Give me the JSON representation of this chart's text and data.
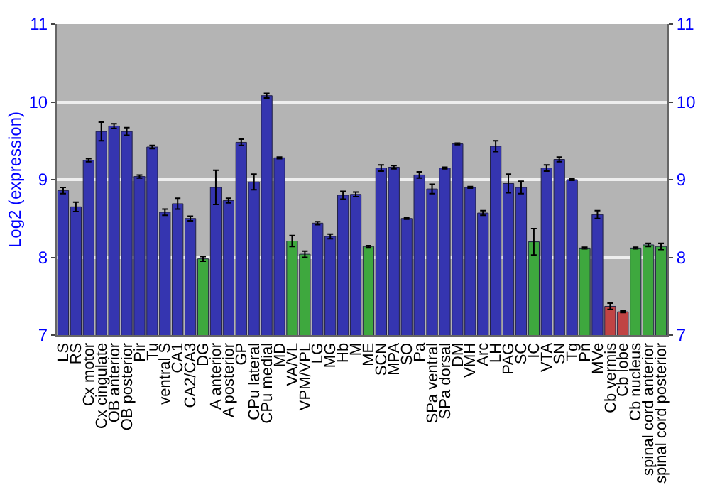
{
  "chart_data": {
    "type": "bar",
    "ylabel": "Log2 (expression)",
    "categories": [
      "LS",
      "RS",
      "Cx motor",
      "Cx cingulate",
      "OB anterior",
      "OB posterior",
      "Pir",
      "Tu",
      "ventral S",
      "CA1",
      "CA2/CA3",
      "DG",
      "A anterior",
      "A posterior",
      "GP",
      "CPu lateral",
      "CPu medial",
      "MD",
      "VA/VL",
      "VPM/VPL",
      "LG",
      "MG",
      "Hb",
      "M",
      "ME",
      "SCN",
      "MPA",
      "SO",
      "Pa",
      "SPa ventral",
      "SPa dorsal",
      "DM",
      "VMH",
      "Arc",
      "LH",
      "PAG",
      "SC",
      "IC",
      "VTA",
      "SN",
      "Tg",
      "Pn",
      "MVe",
      "Cb vermis",
      "Cb lobe",
      "Cb nucleus",
      "spinal cord anterior",
      "spinal cord posterior"
    ],
    "values": [
      8.86,
      8.65,
      9.25,
      9.62,
      9.69,
      9.62,
      9.04,
      9.42,
      8.58,
      8.69,
      8.5,
      7.98,
      8.9,
      8.73,
      9.48,
      8.97,
      10.08,
      9.28,
      8.21,
      8.04,
      8.44,
      8.27,
      8.8,
      8.81,
      8.14,
      9.15,
      9.16,
      8.5,
      9.06,
      8.88,
      9.15,
      9.46,
      8.9,
      8.57,
      9.43,
      8.95,
      8.9,
      8.2,
      9.15,
      9.26,
      9.0,
      8.12,
      8.55,
      7.37,
      7.3,
      8.12,
      8.16,
      8.14
    ],
    "errors": [
      0.04,
      0.06,
      0.02,
      0.12,
      0.03,
      0.05,
      0.02,
      0.02,
      0.04,
      0.07,
      0.03,
      0.03,
      0.22,
      0.03,
      0.04,
      0.1,
      0.03,
      0.01,
      0.07,
      0.04,
      0.02,
      0.03,
      0.05,
      0.03,
      0.01,
      0.04,
      0.02,
      0.01,
      0.04,
      0.06,
      0.01,
      0.01,
      0.01,
      0.03,
      0.07,
      0.12,
      0.08,
      0.17,
      0.04,
      0.03,
      0.01,
      0.01,
      0.05,
      0.04,
      0.01,
      0.01,
      0.02,
      0.04
    ],
    "colors": [
      "#3535b0",
      "#3535b0",
      "#3535b0",
      "#3535b0",
      "#3535b0",
      "#3535b0",
      "#3535b0",
      "#3535b0",
      "#3535b0",
      "#3535b0",
      "#3535b0",
      "#3ea83e",
      "#3535b0",
      "#3535b0",
      "#3535b0",
      "#3535b0",
      "#3535b0",
      "#3535b0",
      "#3ea83e",
      "#3ea83e",
      "#3535b0",
      "#3535b0",
      "#3535b0",
      "#3535b0",
      "#3ea83e",
      "#3535b0",
      "#3535b0",
      "#3535b0",
      "#3535b0",
      "#3535b0",
      "#3535b0",
      "#3535b0",
      "#3535b0",
      "#3535b0",
      "#3535b0",
      "#3535b0",
      "#3535b0",
      "#3ea83e",
      "#3535b0",
      "#3535b0",
      "#3535b0",
      "#3ea83e",
      "#3535b0",
      "#c04444",
      "#c04444",
      "#3ea83e",
      "#3ea83e",
      "#3ea83e"
    ],
    "ylim": [
      7,
      11
    ],
    "yticks": [
      7,
      8,
      9,
      10,
      11
    ],
    "y2lim": [
      7,
      11
    ],
    "y2ticks": [
      7,
      8,
      9,
      10,
      11
    ],
    "grid": "y"
  }
}
